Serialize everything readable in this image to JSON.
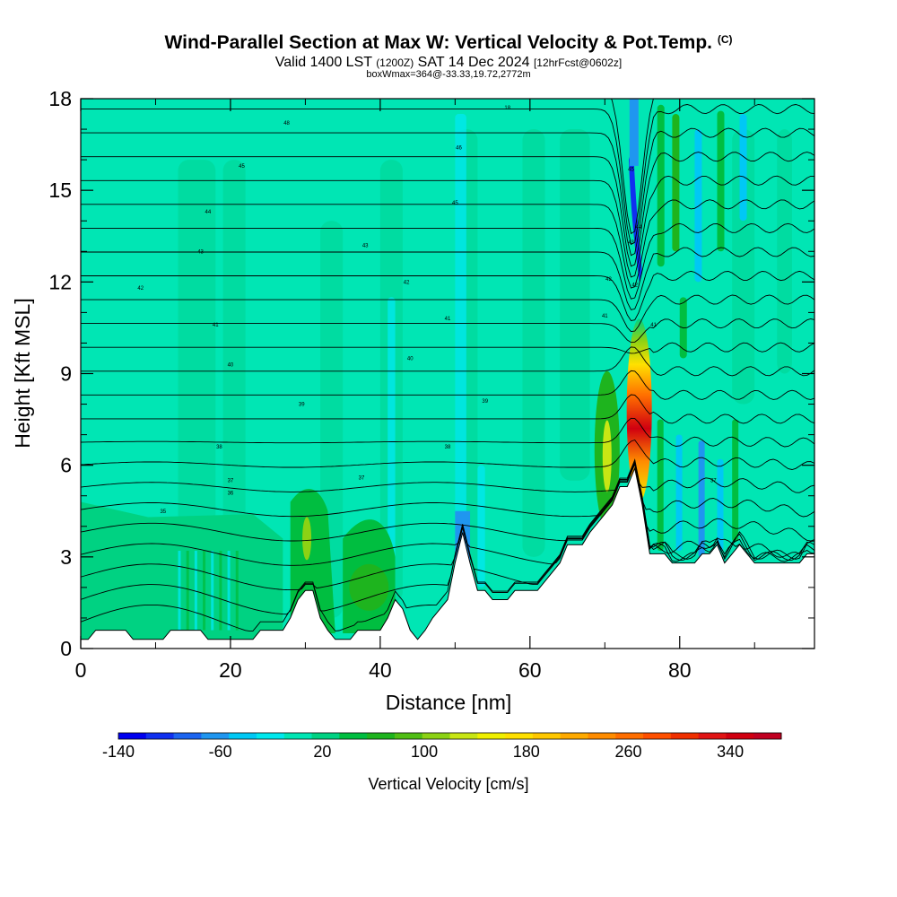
{
  "title": {
    "main": "Wind-Parallel Section at Max W: Vertical Velocity & Pot.Temp.",
    "copyright": "(C)",
    "valid_prefix": "Valid 1400 LST",
    "valid_utc": "(1200Z)",
    "valid_date": "SAT 14 Dec 2024",
    "forecast": "[12hrFcst@0602z]",
    "box_info": "boxWmax=364@-33.33,19.72,2772m"
  },
  "chart_data": {
    "type": "heatmap",
    "xlabel": "Distance [nm]",
    "ylabel": "Height [Kft MSL]",
    "xlim": [
      0,
      98
    ],
    "ylim": [
      0,
      18
    ],
    "x_ticks": [
      0,
      20,
      40,
      60,
      80
    ],
    "y_ticks": [
      0,
      3,
      6,
      9,
      12,
      15,
      18
    ],
    "colorbar": {
      "label": "Vertical Velocity [cm/s]",
      "min": -140,
      "max": 380,
      "tick_labels": [
        -140,
        -60,
        20,
        100,
        180,
        260,
        340
      ],
      "colors": [
        "#0000f0",
        "#1030f0",
        "#1c64f0",
        "#1f96f0",
        "#00c8f5",
        "#00e8ee",
        "#00e6b4",
        "#00d282",
        "#00be40",
        "#1eb41e",
        "#50be14",
        "#8cd214",
        "#c8e614",
        "#f0f000",
        "#ffe000",
        "#ffc800",
        "#ffaa00",
        "#ff8c00",
        "#ff6e00",
        "#ff5000",
        "#f03000",
        "#e01414",
        "#d00010",
        "#c00020"
      ]
    },
    "terrain_kft": [
      [
        0,
        0.3
      ],
      [
        1,
        0.3
      ],
      [
        2,
        0.6
      ],
      [
        6,
        0.6
      ],
      [
        7,
        0.3
      ],
      [
        11,
        0.3
      ],
      [
        12,
        0.6
      ],
      [
        16,
        0.6
      ],
      [
        17,
        0.3
      ],
      [
        23,
        0.3
      ],
      [
        24,
        0.6
      ],
      [
        27,
        0.6
      ],
      [
        28,
        1.0
      ],
      [
        29,
        1.6
      ],
      [
        30,
        1.9
      ],
      [
        31,
        1.9
      ],
      [
        32,
        1.0
      ],
      [
        33,
        0.6
      ],
      [
        34,
        0.3
      ],
      [
        36,
        0.3
      ],
      [
        37,
        0.6
      ],
      [
        40,
        0.6
      ],
      [
        41,
        1.0
      ],
      [
        42,
        1.6
      ],
      [
        43,
        1.3
      ],
      [
        44,
        0.6
      ],
      [
        45,
        0.3
      ],
      [
        46,
        0.6
      ],
      [
        47,
        1.0
      ],
      [
        48,
        1.3
      ],
      [
        49,
        1.6
      ],
      [
        50,
        2.8
      ],
      [
        51,
        3.8
      ],
      [
        52,
        2.8
      ],
      [
        53,
        1.9
      ],
      [
        54,
        1.9
      ],
      [
        55,
        1.6
      ],
      [
        57,
        1.6
      ],
      [
        58,
        1.9
      ],
      [
        61,
        1.9
      ],
      [
        62,
        2.2
      ],
      [
        64,
        2.8
      ],
      [
        65,
        3.4
      ],
      [
        67,
        3.4
      ],
      [
        68,
        3.8
      ],
      [
        69,
        4.1
      ],
      [
        70,
        4.4
      ],
      [
        71,
        4.7
      ],
      [
        72,
        5.3
      ],
      [
        73,
        5.3
      ],
      [
        74,
        5.9
      ],
      [
        75,
        4.7
      ],
      [
        76,
        3.1
      ],
      [
        78,
        3.1
      ],
      [
        79,
        2.8
      ],
      [
        82,
        2.8
      ],
      [
        83,
        3.1
      ],
      [
        84,
        3.1
      ],
      [
        85,
        3.4
      ],
      [
        86,
        2.8
      ],
      [
        87,
        3.1
      ],
      [
        88,
        3.4
      ],
      [
        89,
        3.1
      ],
      [
        90,
        2.8
      ],
      [
        92,
        2.8
      ],
      [
        96,
        2.8
      ],
      [
        97,
        3.1
      ],
      [
        98,
        3.1
      ]
    ],
    "theta_labels": [
      {
        "x": 27.5,
        "y": 17.2,
        "text": "48"
      },
      {
        "x": 57,
        "y": 17.7,
        "text": "18"
      },
      {
        "x": 50.5,
        "y": 16.4,
        "text": "46"
      },
      {
        "x": 21.5,
        "y": 15.8,
        "text": "45"
      },
      {
        "x": 50,
        "y": 14.6,
        "text": "45"
      },
      {
        "x": 17,
        "y": 14.3,
        "text": "44"
      },
      {
        "x": 38,
        "y": 13.2,
        "text": "43"
      },
      {
        "x": 16,
        "y": 13.0,
        "text": "43"
      },
      {
        "x": 43.5,
        "y": 12.0,
        "text": "42"
      },
      {
        "x": 8,
        "y": 11.8,
        "text": "42"
      },
      {
        "x": 49,
        "y": 10.8,
        "text": "41"
      },
      {
        "x": 18,
        "y": 10.6,
        "text": "41"
      },
      {
        "x": 44,
        "y": 9.5,
        "text": "40"
      },
      {
        "x": 20,
        "y": 9.3,
        "text": "40"
      },
      {
        "x": 29.5,
        "y": 8.0,
        "text": "39"
      },
      {
        "x": 54,
        "y": 8.1,
        "text": "39"
      },
      {
        "x": 18.5,
        "y": 6.6,
        "text": "38"
      },
      {
        "x": 49,
        "y": 6.6,
        "text": "38"
      },
      {
        "x": 37.5,
        "y": 5.6,
        "text": "37"
      },
      {
        "x": 20,
        "y": 5.5,
        "text": "37"
      },
      {
        "x": 20,
        "y": 5.1,
        "text": "36"
      },
      {
        "x": 11,
        "y": 4.5,
        "text": "35"
      },
      {
        "x": 70,
        "y": 10.9,
        "text": "41"
      },
      {
        "x": 70.5,
        "y": 12.1,
        "text": "42"
      },
      {
        "x": 73.5,
        "y": 13.3,
        "text": "43"
      },
      {
        "x": 74.5,
        "y": 13.8,
        "text": "44"
      },
      {
        "x": 73.5,
        "y": 15.7,
        "text": "45"
      },
      {
        "x": 76.5,
        "y": 10.6,
        "text": "41"
      },
      {
        "x": 84.5,
        "y": 5.5,
        "text": "37"
      },
      {
        "x": 74,
        "y": 11.9,
        "text": "42"
      }
    ]
  }
}
